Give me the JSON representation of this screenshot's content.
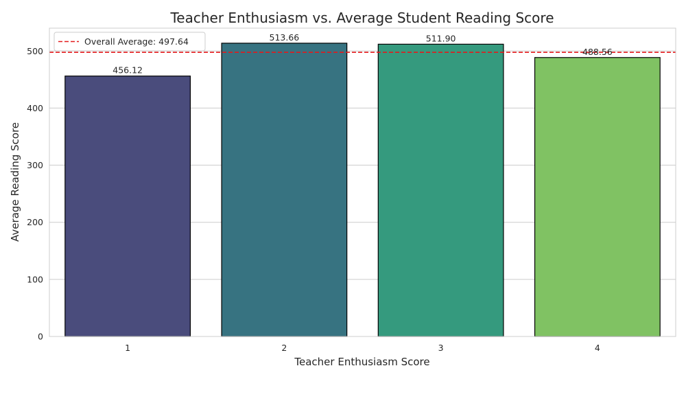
{
  "chart_data": {
    "type": "bar",
    "title": "Teacher Enthusiasm vs. Average Student Reading Score",
    "xlabel": "Teacher Enthusiasm Score",
    "ylabel": "Average Reading Score",
    "categories": [
      "1",
      "2",
      "3",
      "4"
    ],
    "values": [
      456.12,
      513.66,
      511.9,
      488.56
    ],
    "value_labels": [
      "456.12",
      "513.66",
      "511.90",
      "488.56"
    ],
    "bar_colors": [
      "#4a4c7c",
      "#377381",
      "#359a7e",
      "#80c263"
    ],
    "ylim": [
      0,
      540
    ],
    "yticks": [
      0,
      100,
      200,
      300,
      400,
      500
    ],
    "reference_line": {
      "value": 497.64,
      "label": "Overall Average: 497.64",
      "color": "#e31a1c",
      "style": "dashed"
    },
    "legend": {
      "position": "top-left",
      "entries": [
        "Overall Average: 497.64"
      ]
    },
    "grid": "horizontal"
  }
}
